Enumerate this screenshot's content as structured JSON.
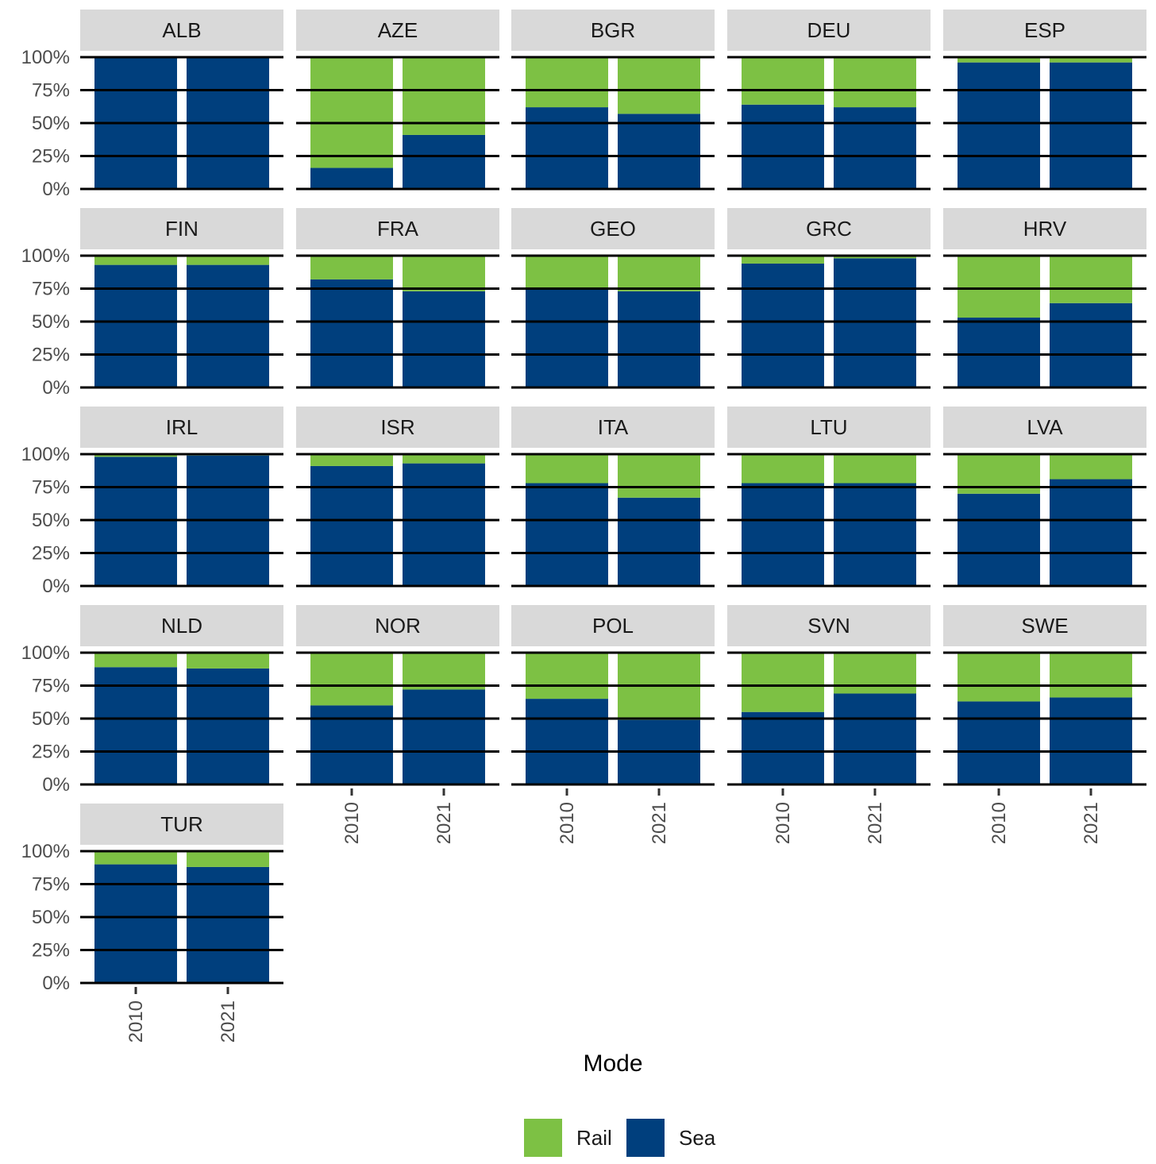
{
  "chart_data": {
    "type": "bar",
    "stacked": true,
    "facet_layout": "grid 5 columns",
    "colors": {
      "Rail": "#7dc144",
      "Sea": "#003f7d",
      "strip": "#d9d9d9",
      "gridline": "#000000"
    },
    "categories": [
      "2010",
      "2021"
    ],
    "y_ticks": [
      "0%",
      "25%",
      "50%",
      "75%",
      "100%"
    ],
    "ylim": [
      0,
      100
    ],
    "legend": {
      "title": "Mode",
      "position": "bottom",
      "entries": [
        "Rail",
        "Sea"
      ]
    },
    "panels": [
      {
        "name": "ALB",
        "sea": [
          100,
          100
        ],
        "rail": [
          0,
          0
        ]
      },
      {
        "name": "AZE",
        "sea": [
          16,
          41
        ],
        "rail": [
          84,
          59
        ]
      },
      {
        "name": "BGR",
        "sea": [
          62,
          57
        ],
        "rail": [
          38,
          43
        ]
      },
      {
        "name": "DEU",
        "sea": [
          64,
          62
        ],
        "rail": [
          36,
          38
        ]
      },
      {
        "name": "ESP",
        "sea": [
          96,
          96
        ],
        "rail": [
          4,
          4
        ]
      },
      {
        "name": "FIN",
        "sea": [
          93,
          93
        ],
        "rail": [
          7,
          7
        ]
      },
      {
        "name": "FRA",
        "sea": [
          82,
          73
        ],
        "rail": [
          18,
          27
        ]
      },
      {
        "name": "GEO",
        "sea": [
          75,
          73
        ],
        "rail": [
          25,
          27
        ]
      },
      {
        "name": "GRC",
        "sea": [
          94,
          98
        ],
        "rail": [
          6,
          2
        ]
      },
      {
        "name": "HRV",
        "sea": [
          53,
          64
        ],
        "rail": [
          47,
          36
        ]
      },
      {
        "name": "IRL",
        "sea": [
          98,
          99
        ],
        "rail": [
          2,
          1
        ]
      },
      {
        "name": "ISR",
        "sea": [
          91,
          93
        ],
        "rail": [
          9,
          7
        ]
      },
      {
        "name": "ITA",
        "sea": [
          78,
          67
        ],
        "rail": [
          22,
          33
        ]
      },
      {
        "name": "LTU",
        "sea": [
          78,
          78
        ],
        "rail": [
          22,
          22
        ]
      },
      {
        "name": "LVA",
        "sea": [
          70,
          81
        ],
        "rail": [
          30,
          19
        ]
      },
      {
        "name": "NLD",
        "sea": [
          89,
          88
        ],
        "rail": [
          11,
          12
        ]
      },
      {
        "name": "NOR",
        "sea": [
          60,
          72
        ],
        "rail": [
          40,
          28
        ]
      },
      {
        "name": "POL",
        "sea": [
          65,
          49
        ],
        "rail": [
          35,
          51
        ]
      },
      {
        "name": "SVN",
        "sea": [
          55,
          69
        ],
        "rail": [
          45,
          31
        ]
      },
      {
        "name": "SWE",
        "sea": [
          63,
          66
        ],
        "rail": [
          37,
          34
        ]
      },
      {
        "name": "TUR",
        "sea": [
          90,
          88
        ],
        "rail": [
          10,
          12
        ]
      }
    ]
  }
}
